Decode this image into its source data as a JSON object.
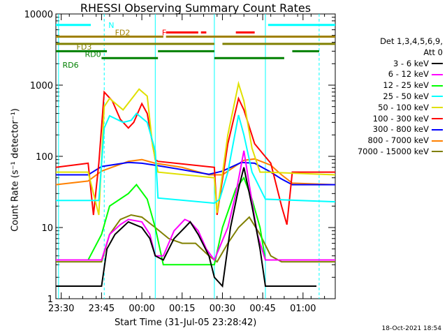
{
  "chart_data": {
    "type": "line",
    "title": "RHESSI Observing Summary Count Rates",
    "xlabel": "Start Time (31-Jul-05 23:28:42)",
    "ylabel": "Count Rate (s⁻¹ detector⁻¹)",
    "yscale": "log",
    "ylim": [
      1,
      10000
    ],
    "xlim": [
      "23:28",
      "01:12"
    ],
    "x_ticks": [
      "23:30",
      "23:45",
      "00:00",
      "00:15",
      "00:30",
      "00:45",
      "01:00"
    ],
    "y_ticks": [
      "1",
      "10",
      "100",
      "1000",
      "10000"
    ],
    "legend_header": [
      "Det 1,3,4,5,6,9,",
      "Att 0"
    ],
    "timestamp": "18-Oct-2021 18:54",
    "flag_labels": {
      "N": "N",
      "F": "F",
      "FD2": "FD2",
      "FD3": "FD3",
      "RD0": "RD0",
      "RD6": "RD6"
    },
    "flags": [
      {
        "name": "N",
        "color": "#00ffff",
        "value": 7000,
        "segments": [
          [
            "23:28",
            "23:41"
          ],
          [
            "00:47",
            "01:12"
          ]
        ]
      },
      {
        "name": "F",
        "color": "#ff0000",
        "value": 5500,
        "segments": [
          [
            "00:09",
            "00:21"
          ],
          [
            "00:22",
            "00:24"
          ],
          [
            "00:35",
            "00:42"
          ]
        ]
      },
      {
        "name": "FD2",
        "color": "#a08000",
        "value": 4800,
        "segments": [
          [
            "23:28",
            "00:08"
          ],
          [
            "00:09",
            "01:12"
          ]
        ]
      },
      {
        "name": "FD3",
        "color": "#808000",
        "value": 3800,
        "segments": [
          [
            "23:28",
            "00:27"
          ],
          [
            "00:30",
            "01:12"
          ]
        ]
      },
      {
        "name": "RD0",
        "color": "#008000",
        "value": 3000,
        "segments": [
          [
            "23:28",
            "23:47"
          ],
          [
            "00:06",
            "00:27"
          ],
          [
            "00:56",
            "01:06"
          ]
        ]
      },
      {
        "name": "RD6",
        "color": "#008000",
        "value": 2400,
        "segments": [
          [
            "23:45",
            "00:06"
          ],
          [
            "00:27",
            "00:53"
          ]
        ]
      }
    ],
    "vlines_solid": [
      "23:29",
      "00:05",
      "00:27",
      "00:46"
    ],
    "vlines_dashed": [
      "23:46",
      "01:06"
    ],
    "series": [
      {
        "name": "3 - 6 keV",
        "color": "#000000",
        "points": [
          [
            "23:28",
            1.5
          ],
          [
            "23:40",
            1.5
          ],
          [
            "23:45",
            1.5
          ],
          [
            "23:47",
            5
          ],
          [
            "23:50",
            8
          ],
          [
            "23:55",
            12
          ],
          [
            "00:00",
            10
          ],
          [
            "00:03",
            7
          ],
          [
            "00:05",
            4
          ],
          [
            "00:08",
            3.5
          ],
          [
            "00:12",
            7
          ],
          [
            "00:16",
            10
          ],
          [
            "00:18",
            12
          ],
          [
            "00:21",
            8
          ],
          [
            "00:25",
            4
          ],
          [
            "00:27",
            2
          ],
          [
            "00:30",
            1.5
          ],
          [
            "00:33",
            10
          ],
          [
            "00:36",
            35
          ],
          [
            "00:38",
            70
          ],
          [
            "00:41",
            20
          ],
          [
            "00:44",
            5
          ],
          [
            "00:46",
            1.5
          ],
          [
            "00:50",
            1.5
          ],
          [
            "00:55",
            1.5
          ],
          [
            "01:00",
            1.5
          ],
          [
            "01:05",
            1.5
          ]
        ]
      },
      {
        "name": "6 - 12 keV",
        "color": "#ff00ff",
        "points": [
          [
            "23:28",
            3.5
          ],
          [
            "23:45",
            3.5
          ],
          [
            "23:48",
            8
          ],
          [
            "23:52",
            11
          ],
          [
            "23:55",
            13
          ],
          [
            "00:00",
            12
          ],
          [
            "00:03",
            8
          ],
          [
            "00:05",
            4
          ],
          [
            "00:08",
            4
          ],
          [
            "00:12",
            9
          ],
          [
            "00:16",
            13
          ],
          [
            "00:18",
            12
          ],
          [
            "00:21",
            9
          ],
          [
            "00:24",
            5
          ],
          [
            "00:27",
            3.5
          ],
          [
            "00:32",
            10
          ],
          [
            "00:35",
            30
          ],
          [
            "00:38",
            120
          ],
          [
            "00:40",
            40
          ],
          [
            "00:43",
            8
          ],
          [
            "00:46",
            3.5
          ],
          [
            "01:12",
            3.5
          ]
        ]
      },
      {
        "name": "12 - 25 keV",
        "color": "#00ff00",
        "points": [
          [
            "23:28",
            3.5
          ],
          [
            "23:40",
            3.5
          ],
          [
            "23:45",
            8
          ],
          [
            "23:48",
            20
          ],
          [
            "23:55",
            30
          ],
          [
            "23:58",
            40
          ],
          [
            "00:02",
            25
          ],
          [
            "00:05",
            10
          ],
          [
            "00:08",
            3
          ],
          [
            "00:27",
            3
          ],
          [
            "00:30",
            10
          ],
          [
            "00:35",
            35
          ],
          [
            "00:38",
            50
          ],
          [
            "00:41",
            25
          ],
          [
            "00:44",
            10
          ],
          [
            "00:46",
            3.5
          ],
          [
            "01:12",
            3.5
          ]
        ]
      },
      {
        "name": "25 - 50 keV",
        "color": "#00ffff",
        "points": [
          [
            "23:28",
            24
          ],
          [
            "23:44",
            24
          ],
          [
            "23:46",
            250
          ],
          [
            "23:48",
            370
          ],
          [
            "23:53",
            300
          ],
          [
            "23:56",
            320
          ],
          [
            "23:58",
            400
          ],
          [
            "00:02",
            300
          ],
          [
            "00:05",
            120
          ],
          [
            "00:06",
            26
          ],
          [
            "00:27",
            22
          ],
          [
            "00:29",
            25
          ],
          [
            "00:32",
            60
          ],
          [
            "00:36",
            380
          ],
          [
            "00:38",
            200
          ],
          [
            "00:41",
            60
          ],
          [
            "00:46",
            25
          ],
          [
            "01:12",
            23
          ]
        ]
      },
      {
        "name": "50 - 100 keV",
        "color": "#e0e000",
        "points": [
          [
            "23:28",
            60
          ],
          [
            "23:40",
            60
          ],
          [
            "23:44",
            15
          ],
          [
            "23:46",
            500
          ],
          [
            "23:48",
            650
          ],
          [
            "23:53",
            450
          ],
          [
            "23:57",
            700
          ],
          [
            "23:59",
            880
          ],
          [
            "00:02",
            700
          ],
          [
            "00:04",
            140
          ],
          [
            "00:06",
            60
          ],
          [
            "00:27",
            50
          ],
          [
            "00:28",
            16
          ],
          [
            "00:32",
            200
          ],
          [
            "00:36",
            1050
          ],
          [
            "00:38",
            600
          ],
          [
            "00:41",
            130
          ],
          [
            "00:44",
            60
          ],
          [
            "00:46",
            60
          ],
          [
            "01:12",
            55
          ]
        ]
      },
      {
        "name": "100 - 300 keV",
        "color": "#ff0000",
        "points": [
          [
            "23:28",
            70
          ],
          [
            "23:40",
            80
          ],
          [
            "23:42",
            15
          ],
          [
            "23:44",
            80
          ],
          [
            "23:46",
            800
          ],
          [
            "23:49",
            600
          ],
          [
            "23:52",
            330
          ],
          [
            "23:55",
            250
          ],
          [
            "23:57",
            300
          ],
          [
            "00:00",
            550
          ],
          [
            "00:02",
            400
          ],
          [
            "00:05",
            90
          ],
          [
            "00:06",
            85
          ],
          [
            "00:27",
            70
          ],
          [
            "00:28",
            15
          ],
          [
            "00:32",
            150
          ],
          [
            "00:36",
            650
          ],
          [
            "00:38",
            450
          ],
          [
            "00:42",
            150
          ],
          [
            "00:48",
            80
          ],
          [
            "00:52",
            20
          ],
          [
            "00:54",
            11
          ],
          [
            "00:56",
            60
          ],
          [
            "01:12",
            60
          ]
        ]
      },
      {
        "name": "300 - 800 keV",
        "color": "#0000ff",
        "points": [
          [
            "23:28",
            55
          ],
          [
            "23:40",
            55
          ],
          [
            "23:45",
            72
          ],
          [
            "23:55",
            82
          ],
          [
            "00:00",
            80
          ],
          [
            "00:05",
            75
          ],
          [
            "00:15",
            65
          ],
          [
            "00:25",
            56
          ],
          [
            "00:30",
            62
          ],
          [
            "00:37",
            82
          ],
          [
            "00:42",
            80
          ],
          [
            "00:48",
            60
          ],
          [
            "00:52",
            48
          ],
          [
            "00:56",
            40
          ],
          [
            "01:12",
            40
          ]
        ]
      },
      {
        "name": "800 - 7000 keV",
        "color": "#ff8000",
        "points": [
          [
            "23:28",
            40
          ],
          [
            "23:40",
            45
          ],
          [
            "23:45",
            62
          ],
          [
            "23:55",
            85
          ],
          [
            "00:00",
            90
          ],
          [
            "00:05",
            80
          ],
          [
            "00:15",
            70
          ],
          [
            "00:25",
            55
          ],
          [
            "00:30",
            55
          ],
          [
            "00:38",
            88
          ],
          [
            "00:42",
            92
          ],
          [
            "00:48",
            75
          ],
          [
            "00:52",
            55
          ],
          [
            "00:56",
            42
          ],
          [
            "01:12",
            40
          ]
        ]
      },
      {
        "name": "7000 - 15000 keV",
        "color": "#808000",
        "points": [
          [
            "23:28",
            3.3
          ],
          [
            "23:45",
            3.3
          ],
          [
            "23:48",
            8
          ],
          [
            "23:52",
            13
          ],
          [
            "23:56",
            15
          ],
          [
            "00:00",
            14
          ],
          [
            "00:05",
            10
          ],
          [
            "00:10",
            7
          ],
          [
            "00:15",
            6
          ],
          [
            "00:20",
            6
          ],
          [
            "00:25",
            4
          ],
          [
            "00:28",
            3.3
          ],
          [
            "00:32",
            6
          ],
          [
            "00:36",
            10
          ],
          [
            "00:40",
            14
          ],
          [
            "00:44",
            8
          ],
          [
            "00:48",
            4
          ],
          [
            "00:52",
            3.3
          ],
          [
            "01:12",
            3.3
          ]
        ]
      }
    ]
  }
}
